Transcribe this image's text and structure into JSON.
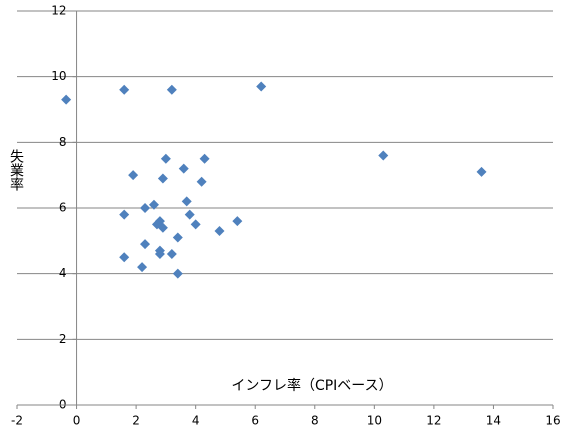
{
  "chart_data": {
    "type": "scatter",
    "x_label": "インフレ率（CPIベース）",
    "y_label": "失業率",
    "x": [
      -0.35,
      1.6,
      3.2,
      6.2,
      10.3,
      13.6,
      1.9,
      3.0,
      4.3,
      3.6,
      2.9,
      4.2,
      3.7,
      2.6,
      2.3,
      1.6,
      3.8,
      5.4,
      2.8,
      2.7,
      4.0,
      2.9,
      4.8,
      3.4,
      2.3,
      2.8,
      2.8,
      3.2,
      1.6,
      2.2,
      3.4
    ],
    "values": [
      9.3,
      9.6,
      9.6,
      9.7,
      7.6,
      7.1,
      7.0,
      7.5,
      7.5,
      7.2,
      6.9,
      6.8,
      6.2,
      6.1,
      6.0,
      5.8,
      5.8,
      5.6,
      5.6,
      5.5,
      5.5,
      5.4,
      5.3,
      5.1,
      4.9,
      4.7,
      4.6,
      4.6,
      4.5,
      4.2,
      4.0
    ],
    "color": "#4f81bd",
    "xlim": [
      -2,
      16
    ],
    "xticks": [
      -2,
      0,
      2,
      4,
      6,
      8,
      10,
      12,
      14,
      16
    ],
    "ylim": [
      0,
      12
    ],
    "yticks": [
      0,
      2,
      4,
      6,
      8,
      10,
      12
    ],
    "grid": true
  }
}
